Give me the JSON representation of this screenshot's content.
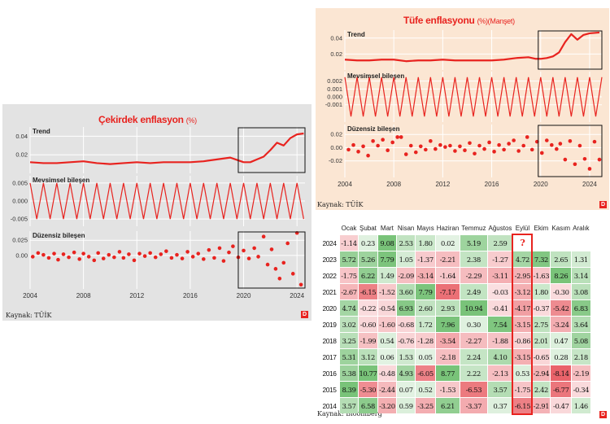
{
  "core": {
    "title": "Çekirdek enflasyon",
    "unit": "(%)",
    "source": "Kaynak: TÜİK",
    "logo": "D",
    "chart_data": {
      "type": "line",
      "x_ticks": [
        "2004",
        "2008",
        "2012",
        "2016",
        "2020",
        "2024"
      ],
      "x_range": [
        2004,
        2024.6
      ],
      "panels": [
        {
          "label": "Trend",
          "ylim": [
            0.0,
            0.05
          ],
          "y_ticks": [
            "0.04",
            "0.02"
          ],
          "y_tick_values": [
            0.04,
            0.02
          ],
          "x": [
            2004,
            2005,
            2006,
            2007,
            2008,
            2009,
            2010,
            2011,
            2012,
            2013,
            2014,
            2015,
            2016,
            2017,
            2018,
            2019,
            2019.6,
            2020,
            2020.5,
            2021,
            2021.5,
            2022,
            2022.5,
            2023,
            2023.5,
            2024,
            2024.5
          ],
          "values": [
            0.012,
            0.011,
            0.011,
            0.012,
            0.013,
            0.011,
            0.01,
            0.011,
            0.012,
            0.011,
            0.012,
            0.012,
            0.012,
            0.013,
            0.015,
            0.017,
            0.014,
            0.012,
            0.012,
            0.015,
            0.018,
            0.025,
            0.033,
            0.03,
            0.038,
            0.042,
            0.043
          ],
          "highlight": [
            2019.6,
            2024.6
          ]
        },
        {
          "label": "Mevsimsel bileşen",
          "ylim": [
            -0.007,
            0.007
          ],
          "y_ticks": [
            "0.005",
            "0.000",
            "-0.005"
          ],
          "y_tick_values": [
            0.005,
            0.0,
            -0.005
          ],
          "pattern": "seasonal",
          "amplitude": 0.005,
          "period": 1
        },
        {
          "label": "Düzensiz bileşen",
          "ylim": [
            -0.055,
            0.04
          ],
          "y_ticks": [
            "0.025",
            "0.00"
          ],
          "y_tick_values": [
            0.025,
            0.0
          ],
          "points": [
            [
              2004.2,
              -0.002
            ],
            [
              2004.6,
              0.004
            ],
            [
              2005.0,
              0.001
            ],
            [
              2005.4,
              -0.004
            ],
            [
              2005.8,
              0.003
            ],
            [
              2006.1,
              -0.007
            ],
            [
              2006.5,
              0.002
            ],
            [
              2006.9,
              -0.003
            ],
            [
              2007.3,
              0.005
            ],
            [
              2007.7,
              -0.006
            ],
            [
              2008.0,
              0.003
            ],
            [
              2008.4,
              -0.002
            ],
            [
              2008.8,
              -0.008
            ],
            [
              2009.1,
              0.004
            ],
            [
              2009.5,
              -0.005
            ],
            [
              2009.9,
              0.001
            ],
            [
              2010.3,
              -0.003
            ],
            [
              2010.7,
              0.006
            ],
            [
              2011.0,
              -0.004
            ],
            [
              2011.4,
              0.002
            ],
            [
              2011.8,
              -0.008
            ],
            [
              2012.2,
              0.003
            ],
            [
              2012.6,
              -0.001
            ],
            [
              2013.0,
              0.004
            ],
            [
              2013.4,
              -0.003
            ],
            [
              2013.8,
              0.002
            ],
            [
              2014.2,
              0.007
            ],
            [
              2014.6,
              -0.004
            ],
            [
              2015.0,
              0.001
            ],
            [
              2015.4,
              -0.005
            ],
            [
              2015.8,
              0.006
            ],
            [
              2016.2,
              -0.002
            ],
            [
              2016.6,
              0.003
            ],
            [
              2017.0,
              -0.006
            ],
            [
              2017.4,
              0.009
            ],
            [
              2017.8,
              -0.004
            ],
            [
              2018.2,
              0.012
            ],
            [
              2018.5,
              -0.009
            ],
            [
              2018.9,
              0.005
            ],
            [
              2019.2,
              0.015
            ],
            [
              2019.6,
              -0.003
            ],
            [
              2020.0,
              0.008
            ],
            [
              2020.4,
              -0.005
            ],
            [
              2020.8,
              0.012
            ],
            [
              2021.1,
              -0.002
            ],
            [
              2021.5,
              0.031
            ],
            [
              2021.8,
              -0.015
            ],
            [
              2022.1,
              0.01
            ],
            [
              2022.4,
              -0.022
            ],
            [
              2022.7,
              -0.038
            ],
            [
              2023.0,
              -0.012
            ],
            [
              2023.3,
              0.02
            ],
            [
              2023.7,
              -0.03
            ],
            [
              2024.0,
              0.037
            ],
            [
              2024.3,
              -0.048
            ]
          ],
          "highlight": [
            2019.6,
            2024.6
          ]
        }
      ]
    }
  },
  "tufe": {
    "title": "Tüfe enflasyonu",
    "unit": "(%)",
    "subtitle": "(Manşet)",
    "source": "Kaynak: TÜİK",
    "logo": "D",
    "chart_data": {
      "type": "line",
      "x_ticks": [
        "2004",
        "2008",
        "2012",
        "2016",
        "2020",
        "2024"
      ],
      "x_range": [
        2004,
        2025
      ],
      "panels": [
        {
          "label": "Trend",
          "ylim": [
            0.0,
            0.05
          ],
          "y_ticks": [
            "0.04",
            "0.02"
          ],
          "y_tick_values": [
            0.04,
            0.02
          ],
          "x": [
            2004,
            2005,
            2006,
            2007,
            2008,
            2009,
            2010,
            2011,
            2012,
            2013,
            2014,
            2015,
            2016,
            2017,
            2018,
            2019,
            2019.6,
            2020,
            2020.5,
            2021,
            2021.5,
            2022,
            2022.5,
            2023,
            2023.5,
            2024,
            2024.8
          ],
          "values": [
            0.013,
            0.012,
            0.012,
            0.013,
            0.013,
            0.011,
            0.012,
            0.012,
            0.013,
            0.012,
            0.012,
            0.012,
            0.012,
            0.013,
            0.015,
            0.016,
            0.014,
            0.014,
            0.015,
            0.017,
            0.022,
            0.035,
            0.045,
            0.038,
            0.044,
            0.046,
            0.047
          ],
          "highlight": [
            2019.8,
            2025
          ]
        },
        {
          "label": "Mevsimsel bileşen",
          "ylim": [
            -0.0032,
            0.0032
          ],
          "y_ticks": [
            "0.002",
            "0.001",
            "0.000",
            "-0.001"
          ],
          "y_tick_values": [
            0.002,
            0.001,
            0.0,
            -0.001
          ],
          "pattern": "seasonal",
          "amplitude": 0.0025,
          "period": 1
        },
        {
          "label": "Düzensiz bileşen",
          "ylim": [
            -0.045,
            0.035
          ],
          "y_ticks": [
            "0.02",
            "0.00",
            "-0.02"
          ],
          "y_tick_values": [
            0.02,
            0.0,
            -0.02
          ],
          "points": [
            [
              2004.3,
              -0.003
            ],
            [
              2004.7,
              0.004
            ],
            [
              2005.1,
              -0.006
            ],
            [
              2005.5,
              0.002
            ],
            [
              2005.9,
              -0.012
            ],
            [
              2006.3,
              0.01
            ],
            [
              2006.7,
              0.003
            ],
            [
              2007.1,
              0.012
            ],
            [
              2007.5,
              -0.004
            ],
            [
              2007.9,
              0.008
            ],
            [
              2008.3,
              0.016
            ],
            [
              2008.6,
              0.016
            ],
            [
              2009.0,
              -0.01
            ],
            [
              2009.4,
              0.003
            ],
            [
              2009.8,
              -0.007
            ],
            [
              2010.2,
              0.002
            ],
            [
              2010.6,
              -0.003
            ],
            [
              2011.0,
              0.01
            ],
            [
              2011.4,
              -0.002
            ],
            [
              2011.8,
              0.004
            ],
            [
              2012.2,
              0.001
            ],
            [
              2012.6,
              0.003
            ],
            [
              2013.0,
              -0.005
            ],
            [
              2013.4,
              0.002
            ],
            [
              2013.8,
              -0.004
            ],
            [
              2014.2,
              0.007
            ],
            [
              2014.6,
              -0.009
            ],
            [
              2015.0,
              0.003
            ],
            [
              2015.4,
              -0.002
            ],
            [
              2015.8,
              0.008
            ],
            [
              2016.2,
              -0.006
            ],
            [
              2016.6,
              0.004
            ],
            [
              2017.0,
              -0.003
            ],
            [
              2017.4,
              0.006
            ],
            [
              2017.8,
              0.011
            ],
            [
              2018.2,
              -0.005
            ],
            [
              2018.6,
              0.003
            ],
            [
              2018.9,
              0.016
            ],
            [
              2019.3,
              -0.003
            ],
            [
              2019.7,
              0.009
            ],
            [
              2020.1,
              -0.008
            ],
            [
              2020.5,
              0.011
            ],
            [
              2020.9,
              0.004
            ],
            [
              2021.3,
              -0.002
            ],
            [
              2021.6,
              0.006
            ],
            [
              2022.0,
              -0.018
            ],
            [
              2022.4,
              0.01
            ],
            [
              2022.8,
              -0.025
            ],
            [
              2023.2,
              0.003
            ],
            [
              2023.6,
              -0.017
            ],
            [
              2024.0,
              -0.032
            ],
            [
              2024.4,
              0.009
            ],
            [
              2024.8,
              -0.018
            ]
          ],
          "highlight": [
            2019.8,
            2025
          ]
        }
      ]
    }
  },
  "table": {
    "source": "Kaynak: Bloomberg",
    "logo": "D",
    "chart_data": {
      "type": "table",
      "columns": [
        "Ocak",
        "Şubat",
        "Mart",
        "Nisan",
        "Mayıs",
        "Haziran",
        "Temmuz",
        "Ağustos",
        "Eylül",
        "Ekim",
        "Kasım",
        "Aralık"
      ],
      "highlight_column": "Eylül",
      "rows": [
        {
          "year": "2024",
          "values": [
            "-1.14",
            "0.23",
            "9.08",
            "2.53",
            "1.80",
            "0.02",
            "5.19",
            "2.59",
            "?",
            "",
            "",
            ""
          ]
        },
        {
          "year": "2023",
          "values": [
            "5.72",
            "5.26",
            "7.79",
            "1.05",
            "-1.37",
            "-2.21",
            "2.38",
            "-1.27",
            "4.72",
            "7.32",
            "2.65",
            "1.31"
          ]
        },
        {
          "year": "2022",
          "values": [
            "-1.75",
            "6.22",
            "1.49",
            "-2.09",
            "-3.14",
            "-1.64",
            "-2.29",
            "-3.11",
            "-2.95",
            "-1.63",
            "8.26",
            "3.14"
          ]
        },
        {
          "year": "2021",
          "values": [
            "-2.67",
            "-6.15",
            "-1.52",
            "3.60",
            "7.79",
            "-7.17",
            "2.49",
            "-0.03",
            "-3.12",
            "1.80",
            "-0.30",
            "3.08"
          ]
        },
        {
          "year": "2020",
          "values": [
            "4.74",
            "-0.22",
            "-0.54",
            "6.93",
            "2.60",
            "2.93",
            "10.94",
            "-0.41",
            "-4.17",
            "-0.37",
            "-5.42",
            "6.83"
          ]
        },
        {
          "year": "2019",
          "values": [
            "3.02",
            "-0.60",
            "-1.60",
            "-0.68",
            "1.72",
            "7.96",
            "0.30",
            "7.54",
            "-3.15",
            "2.75",
            "-3.24",
            "3.64"
          ]
        },
        {
          "year": "2018",
          "values": [
            "3.25",
            "-1.99",
            "0.54",
            "-0.76",
            "-1.28",
            "-3.54",
            "-2.27",
            "-1.88",
            "-0.86",
            "2.01",
            "0.47",
            "5.08"
          ]
        },
        {
          "year": "2017",
          "values": [
            "5.31",
            "3.12",
            "0.06",
            "1.53",
            "0.05",
            "-2.18",
            "2.24",
            "4.10",
            "-3.15",
            "-0.65",
            "0.28",
            "2.18"
          ]
        },
        {
          "year": "2016",
          "values": [
            "5.38",
            "10.77",
            "-0.48",
            "4.93",
            "-6.05",
            "8.77",
            "2.22",
            "-2.13",
            "0.53",
            "-2.94",
            "-8.14",
            "-2.19"
          ]
        },
        {
          "year": "2015",
          "values": [
            "8.39",
            "-5.30",
            "-2.44",
            "0.07",
            "0.52",
            "-1.53",
            "-6.53",
            "3.57",
            "-1.75",
            "2.42",
            "-6.77",
            "-0.34"
          ]
        },
        {
          "year": "2014",
          "values": [
            "3.57",
            "6.58",
            "-3.20",
            "0.59",
            "-3.25",
            "6.21",
            "-3.37",
            "0.37",
            "-6.15",
            "-2.91",
            "-0.47",
            "1.46"
          ]
        }
      ]
    }
  },
  "colors": {
    "line": "#e8231f",
    "positive": "#58b95a",
    "negative": "#e8545a",
    "highlight_box": "#e8231f"
  }
}
